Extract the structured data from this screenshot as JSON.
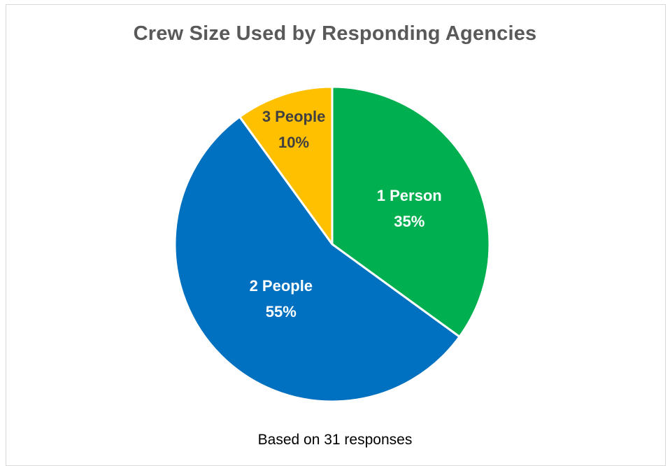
{
  "chart_data": {
    "type": "pie",
    "title": "Crew Size Used by Responding Agencies",
    "footnote": "Based on 31 responses",
    "categories": [
      "1 Person",
      "2 People",
      "3 People"
    ],
    "values": [
      35,
      55,
      10
    ],
    "value_labels": [
      "35%",
      "55%",
      "10%"
    ],
    "colors": [
      "#00B050",
      "#0070C0",
      "#FFC000"
    ],
    "label_colors": [
      "#ffffff",
      "#ffffff",
      "#404040"
    ],
    "start_angle": "12 o'clock",
    "direction": "clockwise",
    "legend": "none"
  }
}
